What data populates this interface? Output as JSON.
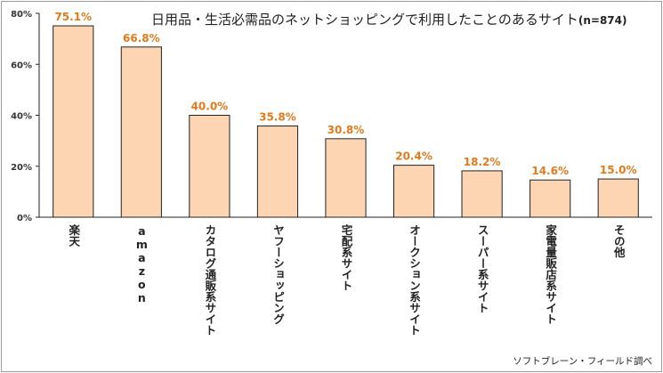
{
  "chart_data": {
    "type": "bar",
    "title": "日用品・生活必需品のネットショッピングで利用したことのあるサイト",
    "subtitle": "(n=874)",
    "source": "ソフトブレーン・フィールド調べ",
    "categories": [
      "楽天",
      "amazon",
      "カタログ通販系サイト",
      "ヤフーショッピング",
      "宅配系サイト",
      "オークション系サイト",
      "スーパー系サイト",
      "家電量販店系サイト",
      "その他"
    ],
    "values": [
      75.1,
      66.8,
      40.0,
      35.8,
      30.8,
      20.4,
      18.2,
      14.6,
      15.0
    ],
    "value_labels": [
      "75.1%",
      "66.8%",
      "40.0%",
      "35.8%",
      "30.8%",
      "20.4%",
      "18.2%",
      "14.6%",
      "15.0%"
    ],
    "yticks": [
      "0%",
      "20%",
      "40%",
      "60%",
      "80%"
    ],
    "ylim": [
      0,
      80
    ],
    "grid": false,
    "colors": {
      "bar_fill": "#fdd5b2",
      "bar_stroke": "#222222",
      "value_label": "#e07a1c"
    }
  }
}
